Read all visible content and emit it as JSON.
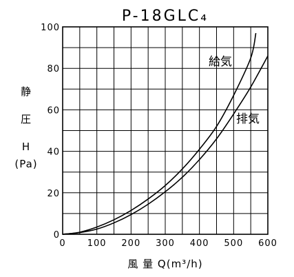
{
  "chart_data": {
    "type": "line",
    "title": "P-18GLC₄",
    "ylabel_lines": [
      "静",
      "圧",
      "H",
      "(Pa)"
    ],
    "xlabel": "風 量 Q(m³/h)",
    "xlim": [
      0,
      600
    ],
    "ylim": [
      0,
      100
    ],
    "x_ticks": [
      0,
      100,
      200,
      300,
      400,
      500,
      600
    ],
    "y_ticks": [
      0,
      20,
      40,
      60,
      80,
      100
    ],
    "x_grid_step": 50,
    "y_grid_step": 10,
    "grid": true,
    "series": [
      {
        "name": "給気",
        "x": [
          0,
          50,
          100,
          150,
          200,
          250,
          300,
          350,
          400,
          450,
          500,
          550,
          565
        ],
        "y": [
          0,
          1,
          3.5,
          7,
          11.5,
          17,
          23.5,
          31.5,
          41,
          52,
          67,
          85,
          97
        ]
      },
      {
        "name": "排気",
        "x": [
          0,
          50,
          100,
          150,
          200,
          250,
          300,
          350,
          400,
          450,
          500,
          550,
          600
        ],
        "y": [
          0,
          0.8,
          2.5,
          5.5,
          9.5,
          14.5,
          20.5,
          27.5,
          36,
          46,
          58,
          71,
          86
        ]
      }
    ]
  }
}
